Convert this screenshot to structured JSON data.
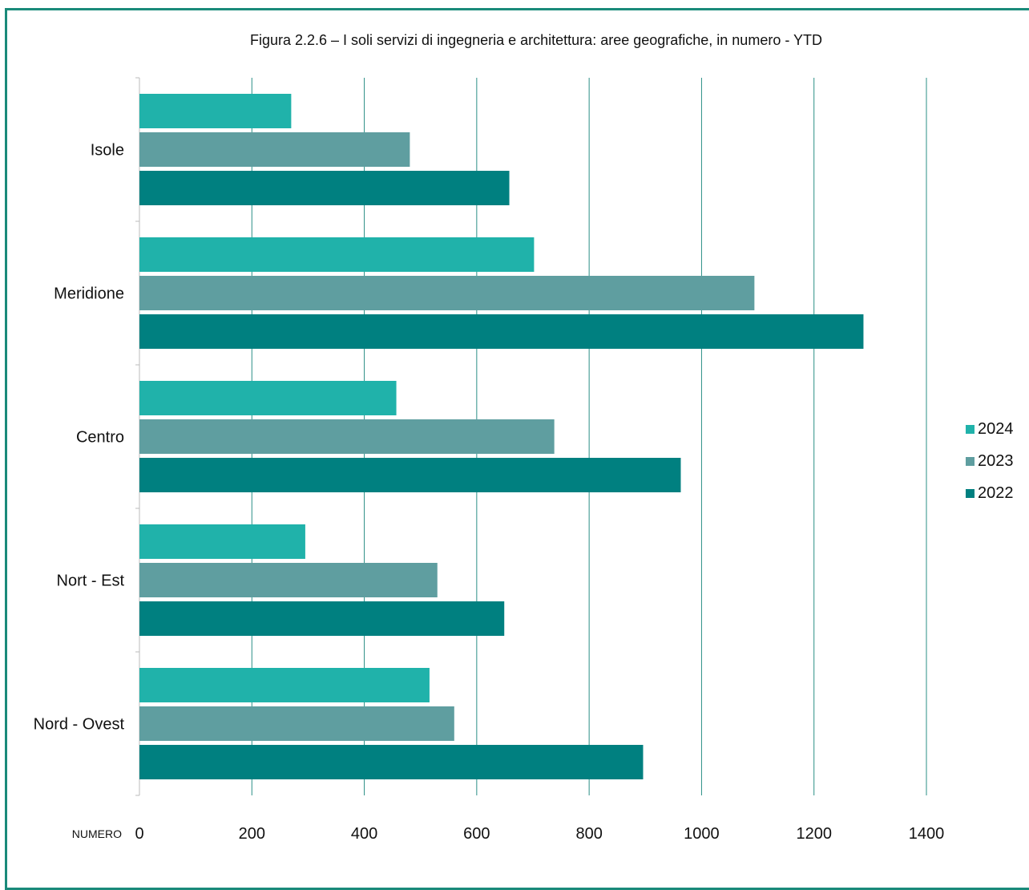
{
  "chart_data": {
    "type": "bar",
    "orientation": "horizontal",
    "title": "Figura 2.2.6  – I soli servizi di ingegneria e architettura: aree geografiche, in numero - YTD",
    "xlabel": "NUMERO",
    "ylabel": "",
    "xlim": [
      0,
      1400
    ],
    "xticks": [
      "0",
      "200",
      "400",
      "600",
      "800",
      "1000",
      "1200",
      "1400"
    ],
    "grid": "vertical",
    "legend_position": "right",
    "categories": [
      "Isole",
      "Meridione",
      "Centro",
      "Nort - Est",
      "Nord - Ovest"
    ],
    "series": [
      {
        "name": "2024",
        "color": "#20b2aa",
        "values": [
          270,
          702,
          457,
          295,
          516
        ]
      },
      {
        "name": "2023",
        "color": "#5f9ea0",
        "values": [
          481,
          1094,
          738,
          530,
          560
        ]
      },
      {
        "name": "2022",
        "color": "#008080",
        "values": [
          658,
          1288,
          963,
          649,
          896
        ]
      }
    ]
  }
}
